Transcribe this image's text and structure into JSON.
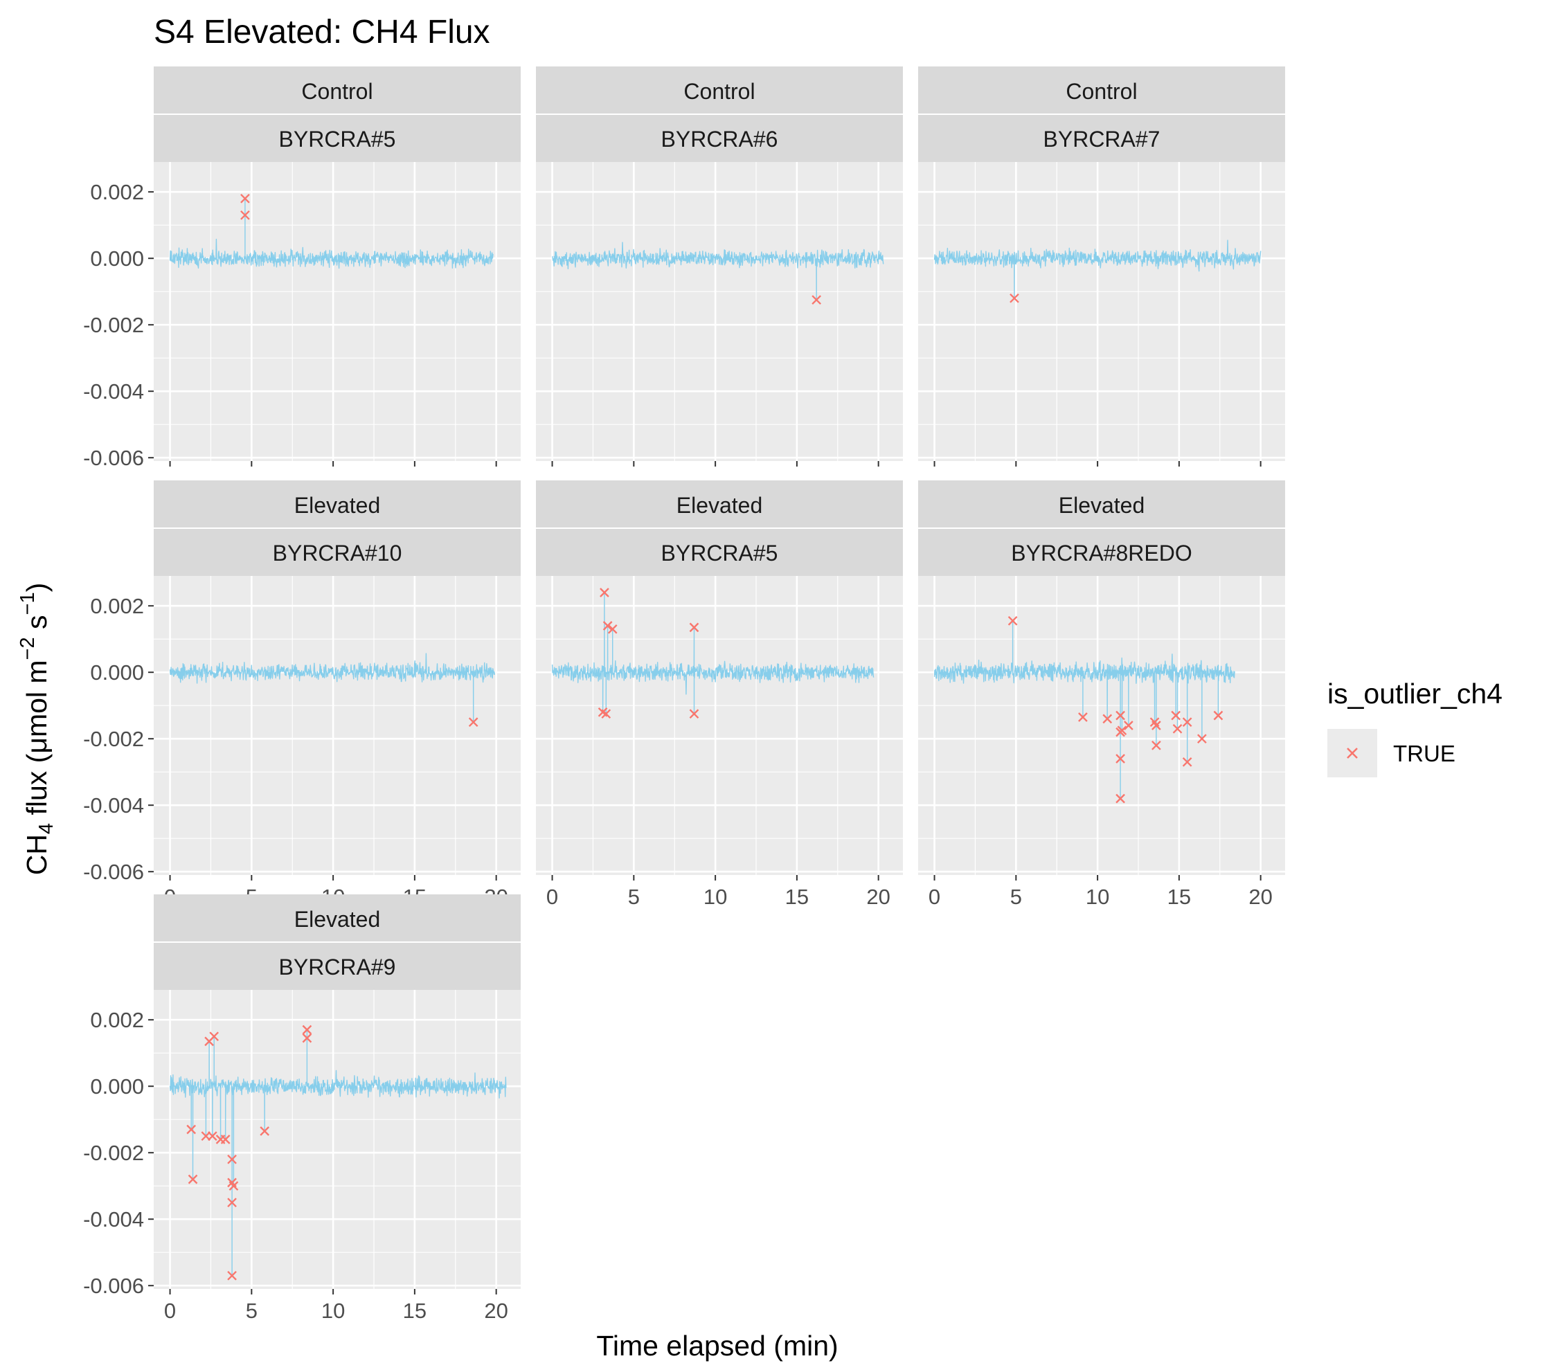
{
  "chart_data": {
    "type": "line",
    "title": "S4 Elevated: CH4 Flux",
    "xlabel": "Time elapsed (min)",
    "ylabel": {
      "prefix": "CH",
      "subscript": "4",
      "middle": " flux (μmol m",
      "superscript1": "−2",
      "middle2": " s",
      "superscript2": "−1",
      "suffix": ")"
    },
    "xlim": [
      -1,
      21.5
    ],
    "ylim": [
      -0.0061,
      0.0029
    ],
    "x_ticks": [
      0,
      5,
      10,
      15,
      20
    ],
    "x_tick_labels": [
      "0",
      "5",
      "10",
      "15",
      "20"
    ],
    "y_ticks": [
      0.002,
      0.0,
      -0.002,
      -0.004,
      -0.006
    ],
    "y_tick_labels": [
      "0.002",
      "0.000",
      "-0.002",
      "-0.004",
      "-0.006"
    ],
    "grid": true,
    "line_color": "#87ceeb",
    "outlier_color": "#f8766d",
    "legend": {
      "title": "is_outlier_ch4",
      "entries": [
        "TRUE"
      ],
      "position": "right"
    },
    "panels": [
      {
        "treatment": "Control",
        "plot": "BYRCRA#5",
        "duration": 19.8,
        "noise": 0.00035,
        "outliers": [
          [
            4.6,
            0.0018
          ],
          [
            4.6,
            0.0013
          ]
        ]
      },
      {
        "treatment": "Control",
        "plot": "BYRCRA#6",
        "duration": 20.3,
        "noise": 0.00035,
        "outliers": [
          [
            16.2,
            -0.00125
          ]
        ]
      },
      {
        "treatment": "Control",
        "plot": "BYRCRA#7",
        "duration": 20.0,
        "noise": 0.00035,
        "outliers": [
          [
            4.9,
            -0.0012
          ]
        ]
      },
      {
        "treatment": "Elevated",
        "plot": "BYRCRA#10",
        "duration": 19.9,
        "noise": 0.00035,
        "outliers": [
          [
            18.6,
            -0.0015
          ]
        ]
      },
      {
        "treatment": "Elevated",
        "plot": "BYRCRA#5",
        "duration": 19.7,
        "noise": 0.00038,
        "outliers": [
          [
            3.2,
            0.0024
          ],
          [
            3.4,
            0.0014
          ],
          [
            3.7,
            0.0013
          ],
          [
            8.7,
            0.00135
          ],
          [
            3.1,
            -0.0012
          ],
          [
            3.3,
            -0.00125
          ],
          [
            8.7,
            -0.00125
          ]
        ]
      },
      {
        "treatment": "Elevated",
        "plot": "BYRCRA#8REDO",
        "duration": 18.4,
        "noise": 0.0004,
        "outliers": [
          [
            4.8,
            0.00155
          ],
          [
            9.1,
            -0.00135
          ],
          [
            10.6,
            -0.0014
          ],
          [
            11.4,
            -0.0013
          ],
          [
            11.4,
            -0.0018
          ],
          [
            11.5,
            -0.00175
          ],
          [
            11.4,
            -0.0026
          ],
          [
            11.4,
            -0.0038
          ],
          [
            11.9,
            -0.0016
          ],
          [
            13.5,
            -0.0015
          ],
          [
            13.6,
            -0.0016
          ],
          [
            13.6,
            -0.0022
          ],
          [
            14.8,
            -0.0013
          ],
          [
            14.9,
            -0.0017
          ],
          [
            15.5,
            -0.0015
          ],
          [
            15.5,
            -0.0027
          ],
          [
            16.4,
            -0.002
          ],
          [
            17.4,
            -0.0013
          ]
        ]
      },
      {
        "treatment": "Elevated",
        "plot": "BYRCRA#9",
        "duration": 20.6,
        "noise": 0.00038,
        "outliers": [
          [
            1.3,
            -0.0013
          ],
          [
            1.4,
            -0.0028
          ],
          [
            2.2,
            -0.0015
          ],
          [
            2.4,
            0.00135
          ],
          [
            2.7,
            0.0015
          ],
          [
            2.6,
            -0.0015
          ],
          [
            3.1,
            -0.0016
          ],
          [
            3.4,
            -0.0016
          ],
          [
            3.8,
            -0.0022
          ],
          [
            3.8,
            -0.0029
          ],
          [
            3.9,
            -0.003
          ],
          [
            3.8,
            -0.0035
          ],
          [
            3.8,
            -0.0057
          ],
          [
            5.8,
            -0.00135
          ],
          [
            8.4,
            0.0017
          ],
          [
            8.4,
            0.00145
          ]
        ]
      }
    ]
  }
}
